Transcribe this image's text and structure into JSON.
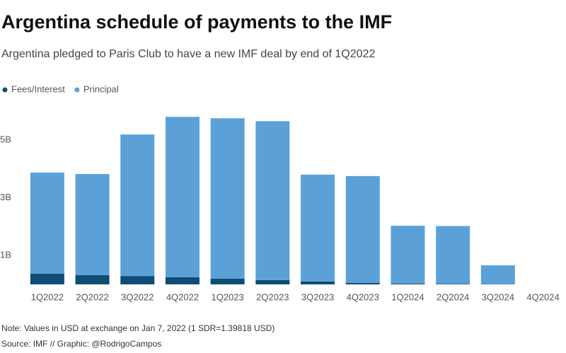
{
  "chart_data": {
    "type": "stacked_bar",
    "title": "Argentina schedule of payments to the IMF",
    "subtitle": "Argentina pledged to Paris Club to have a new IMF deal by end of 1Q2022",
    "categories": [
      "1Q2022",
      "2Q2022",
      "3Q2022",
      "4Q2022",
      "1Q2023",
      "2Q2023",
      "3Q2023",
      "4Q2023",
      "1Q2024",
      "2Q2024",
      "3Q2024",
      "4Q2024"
    ],
    "series": [
      {
        "name": "Fees/Interest",
        "color": "#0f4c75",
        "values": [
          0.37,
          0.32,
          0.29,
          0.25,
          0.2,
          0.15,
          0.1,
          0.05,
          0.03,
          0.02,
          0.01,
          0
        ]
      },
      {
        "name": "Principal",
        "color": "#5ba1d8",
        "values": [
          3.5,
          3.5,
          4.9,
          5.55,
          5.55,
          5.5,
          3.7,
          3.7,
          2.0,
          2.0,
          0.65,
          0
        ]
      }
    ],
    "ylim": [
      0,
      6
    ],
    "yticks": [
      {
        "value": 1,
        "label": "1B"
      },
      {
        "value": 3,
        "label": "3B"
      },
      {
        "value": 5,
        "label": "5B"
      }
    ],
    "grid": false,
    "legend": "top-left",
    "note": "Note: Values in USD at exchange on Jan 7, 2022 (1 SDR=1.39818 USD)",
    "source": "Source: IMF // Graphic: @RodrigoCampos"
  }
}
